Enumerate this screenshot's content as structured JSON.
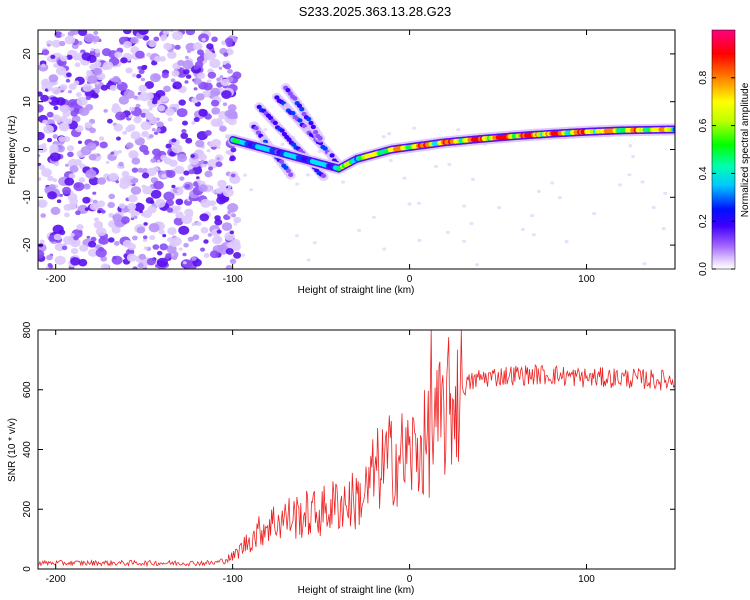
{
  "title": "S233.2025.363.13.28.G23",
  "chart_data": [
    {
      "type": "heatmap",
      "name": "spectrogram",
      "xlabel": "Height of straight line (km)",
      "ylabel": "Frequency (Hz)",
      "xlim": [
        -210,
        150
      ],
      "ylim": [
        -25,
        25
      ],
      "xticks": [
        -200,
        -100,
        0,
        100
      ],
      "xtick_labels": [
        "-200",
        "-100",
        "0",
        "100"
      ],
      "yticks": [
        -20,
        -10,
        0,
        10,
        20
      ],
      "ytick_labels": [
        "-20",
        "-10",
        "0",
        "10",
        "20"
      ],
      "colorbar": {
        "label": "Normalized spectral amplitude",
        "range": [
          0,
          1
        ],
        "ticks": [
          0.0,
          0.2,
          0.4,
          0.6,
          0.8
        ],
        "tick_labels": [
          "0.0",
          "0.2",
          "0.4",
          "0.6",
          "0.8"
        ],
        "colors": [
          "#ffffff",
          "#e0c8ff",
          "#a060ff",
          "#4000ff",
          "#0000ff",
          "#00ffff",
          "#00ff00",
          "#ffff00",
          "#ff8000",
          "#ff0000",
          "#ff00a0"
        ]
      },
      "noise_region_x": [
        -210,
        -105
      ],
      "main_track": {
        "x": [
          -100,
          -90,
          -80,
          -70,
          -60,
          -50,
          -40,
          -35,
          -30,
          -20,
          -10,
          0,
          10,
          20,
          40,
          60,
          80,
          100,
          120,
          150
        ],
        "freq": [
          2,
          1,
          0,
          -1,
          -2,
          -3,
          -4,
          -3,
          -2,
          -1,
          0,
          0.5,
          1,
          1.5,
          2.2,
          2.8,
          3.3,
          3.7,
          4,
          4.2
        ],
        "amplitude": [
          0.5,
          0.45,
          0.4,
          0.4,
          0.4,
          0.45,
          0.5,
          0.6,
          0.65,
          0.7,
          0.75,
          0.8,
          0.85,
          0.85,
          0.9,
          0.9,
          0.9,
          0.85,
          0.8,
          0.75
        ]
      },
      "secondary_tracks": [
        {
          "x": [
            -75,
            -65,
            -55,
            -45,
            -38
          ],
          "freq": [
            11,
            7,
            3,
            -1,
            -4
          ]
        },
        {
          "x": [
            -85,
            -75,
            -65,
            -55,
            -48
          ],
          "freq": [
            9,
            5,
            1,
            -3,
            -6
          ]
        },
        {
          "x": [
            -70,
            -62,
            -55,
            -50
          ],
          "freq": [
            13,
            9,
            5,
            2
          ]
        },
        {
          "x": [
            -88,
            -80,
            -72,
            -66
          ],
          "freq": [
            5,
            1,
            -3,
            -6
          ]
        }
      ]
    },
    {
      "type": "line",
      "name": "snr",
      "xlabel": "Height of straight line (km)",
      "ylabel": "SNR (10 * v/v)",
      "xlim": [
        -210,
        150
      ],
      "ylim": [
        0,
        800
      ],
      "xticks": [
        -200,
        -100,
        0,
        100
      ],
      "xtick_labels": [
        "-200",
        "-100",
        "0",
        "100"
      ],
      "yticks": [
        0,
        200,
        400,
        600,
        800
      ],
      "ytick_labels": [
        "0",
        "200",
        "400",
        "600",
        "800"
      ],
      "color": "#ee2222",
      "trend": {
        "x": [
          -210,
          -110,
          -100,
          -90,
          -80,
          -70,
          -60,
          -50,
          -40,
          -30,
          -25,
          -20,
          -10,
          0,
          10,
          20,
          30,
          40,
          60,
          80,
          100,
          120,
          150
        ],
        "y": [
          20,
          20,
          40,
          100,
          150,
          170,
          180,
          190,
          220,
          230,
          250,
          320,
          370,
          380,
          420,
          520,
          610,
          640,
          650,
          650,
          640,
          640,
          630
        ]
      },
      "spike": {
        "x": 12,
        "y": 800
      }
    }
  ]
}
